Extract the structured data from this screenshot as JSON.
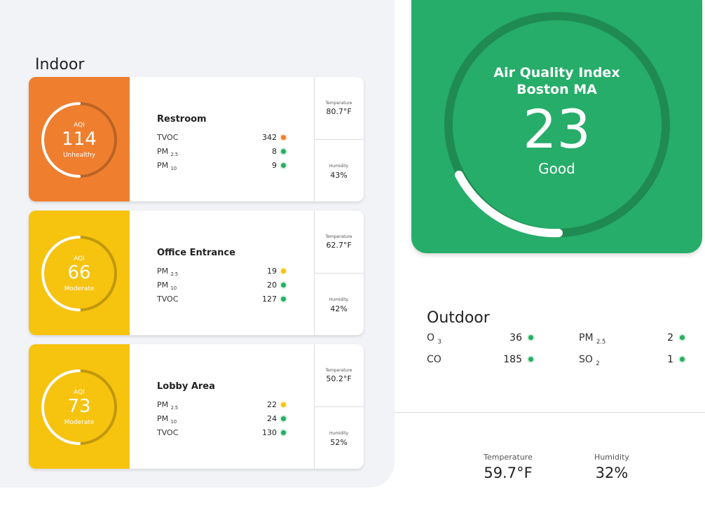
{
  "indoor": {
    "title": "Indoor",
    "rooms": [
      {
        "name": "Restroom",
        "color": "#ef7f2f",
        "aqi_label": "AQI",
        "aqi": 114,
        "status": "Unhealthy",
        "pollutants": [
          {
            "name": "TVOC",
            "value": 342,
            "dot": "#ef7f2f"
          },
          {
            "name": "PM",
            "sub": "2.5",
            "value": 8,
            "dot": "#27ae60"
          },
          {
            "name": "PM",
            "sub": "10",
            "value": 9,
            "dot": "#27ae60"
          }
        ],
        "temperature_label": "Temperature",
        "temperature": "80.7°F",
        "humidity_label": "Humidity",
        "humidity": "43%"
      },
      {
        "name": "Office Entrance",
        "color": "#f6c30f",
        "aqi_label": "AQI",
        "aqi": 66,
        "status": "Moderate",
        "pollutants": [
          {
            "name": "PM",
            "sub": "2.5",
            "value": 19,
            "dot": "#f6c30f"
          },
          {
            "name": "PM",
            "sub": "10",
            "value": 20,
            "dot": "#27ae60"
          },
          {
            "name": "TVOC",
            "value": 127,
            "dot": "#27ae60"
          }
        ],
        "temperature_label": "Temperature",
        "temperature": "62.7°F",
        "humidity_label": "Humidity",
        "humidity": "42%"
      },
      {
        "name": "Lobby Area",
        "color": "#f6c30f",
        "aqi_label": "AQI",
        "aqi": 73,
        "status": "Moderate",
        "pollutants": [
          {
            "name": "PM",
            "sub": "2.5",
            "value": 22,
            "dot": "#f6c30f"
          },
          {
            "name": "PM",
            "sub": "10",
            "value": 24,
            "dot": "#27ae60"
          },
          {
            "name": "TVOC",
            "value": 130,
            "dot": "#27ae60"
          }
        ],
        "temperature_label": "Temperature",
        "temperature": "50.2°F",
        "humidity_label": "Humidity",
        "humidity": "52%"
      }
    ]
  },
  "summary": {
    "title": "Air Quality Index",
    "location": "Boston MA",
    "aqi": 23,
    "status": "Good"
  },
  "outdoor": {
    "title": "Outdoor",
    "pollutants": [
      {
        "name": "O",
        "sub": "3",
        "value": 36,
        "dot": "#27ae60"
      },
      {
        "name": "PM",
        "sub": "2.5",
        "value": 2,
        "dot": "#27ae60"
      },
      {
        "name": "CO",
        "value": 185,
        "dot": "#27ae60"
      },
      {
        "name": "SO",
        "sub": "2",
        "value": 1,
        "dot": "#27ae60"
      }
    ],
    "temperature_label": "Temperature",
    "temperature": "59.7°F",
    "humidity_label": "Humidity",
    "humidity": "32%"
  }
}
